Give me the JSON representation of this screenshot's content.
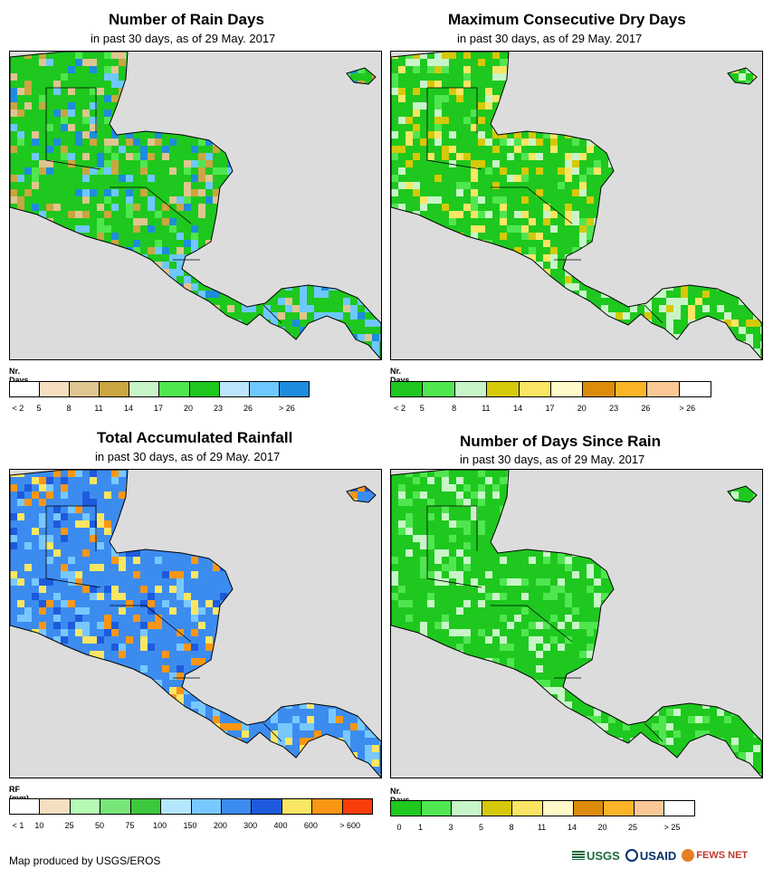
{
  "panels": [
    {
      "id": "rain-days",
      "title": "Number of Rain Days",
      "subtitle": "in past 30 days, as of 29 May. 2017",
      "unit": "Nr. Days",
      "ticks": [
        "< 2",
        "5",
        "8",
        "11",
        "14",
        "17",
        "20",
        "23",
        "26",
        "> 26"
      ],
      "colors": [
        "#ffffff",
        "#f5dfc0",
        "#dfc58f",
        "#c9a640",
        "#c8f5c8",
        "#50e650",
        "#1ec81e",
        "#bce6ff",
        "#6ec8ff",
        "#1e8cdc"
      ]
    },
    {
      "id": "max-dry-days",
      "title": "Maximum Consecutive Dry Days",
      "subtitle": "in past 30 days, as of 29 May. 2017",
      "unit": "Nr. Days",
      "ticks": [
        "< 2",
        "5",
        "8",
        "11",
        "14",
        "17",
        "20",
        "23",
        "26",
        "> 26"
      ],
      "colors": [
        "#1ec81e",
        "#50e650",
        "#c8f5c8",
        "#d6c80a",
        "#fae664",
        "#fffac8",
        "#dc8c0a",
        "#fab428",
        "#fac896",
        "#ffffff"
      ]
    },
    {
      "id": "total-rainfall",
      "title": "Total Accumulated Rainfall",
      "subtitle": "in past 30 days, as of 29 May. 2017",
      "unit": "RF (mm)",
      "ticks": [
        "< 1",
        "10",
        "25",
        "50",
        "75",
        "100",
        "150",
        "200",
        "300",
        "400",
        "600",
        "> 600"
      ],
      "colors": [
        "#ffffff",
        "#f5dfc0",
        "#b4fab4",
        "#78e678",
        "#3cc83c",
        "#b4e6ff",
        "#78c8ff",
        "#3c8cf0",
        "#1e5adc",
        "#fae664",
        "#fa9614",
        "#fa3c0a"
      ]
    },
    {
      "id": "days-since-rain",
      "title": "Number of Days Since Rain",
      "subtitle": "in past 30 days, as of 29 May. 2017",
      "unit": "Nr. Days",
      "ticks": [
        "0",
        "1",
        "3",
        "5",
        "8",
        "11",
        "14",
        "20",
        "25",
        "> 25"
      ],
      "colors": [
        "#1ec81e",
        "#50e650",
        "#c8f5c8",
        "#d6c80a",
        "#fae664",
        "#fffac8",
        "#dc8c0a",
        "#fab428",
        "#fac896",
        "#ffffff"
      ]
    }
  ],
  "footer": {
    "credit": "Map produced by USGS/EROS",
    "logos": [
      "USGS",
      "USAID",
      "FEWS NET"
    ]
  }
}
